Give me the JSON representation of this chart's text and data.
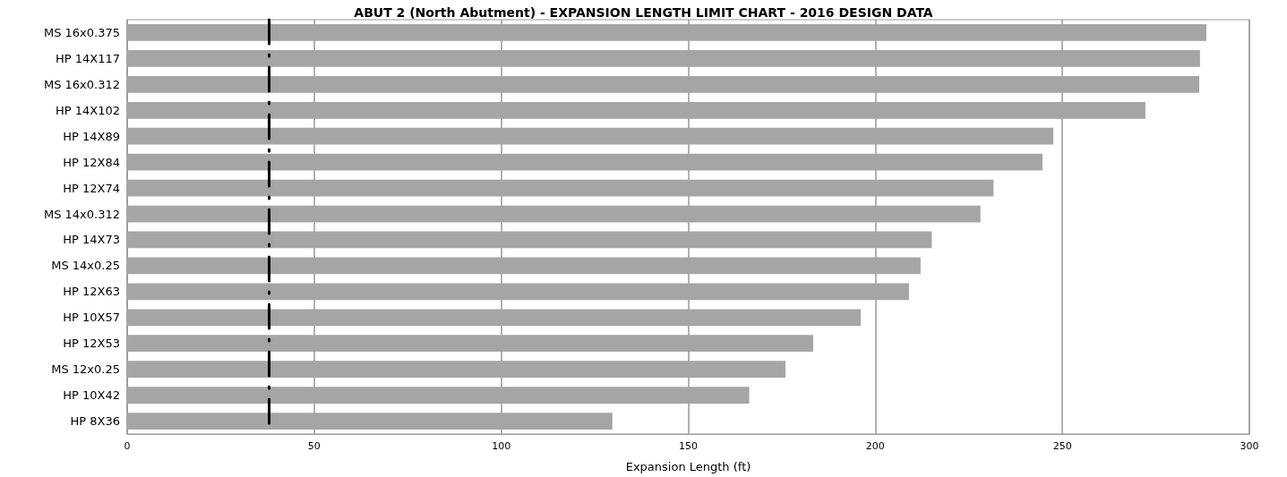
{
  "chart_data": {
    "type": "bar",
    "orientation": "horizontal",
    "title": "ABUT 2 (North Abutment) - EXPANSION LENGTH LIMIT CHART - 2016 DESIGN DATA",
    "xlabel": "Expansion Length (ft)",
    "categories": [
      "MS 16x0.375",
      "HP 14X117",
      "MS 16x0.312",
      "HP 14X102",
      "HP 14X89",
      "HP 12X84",
      "HP 12X74",
      "MS 14x0.312",
      "HP 14X73",
      "MS 14x0.25",
      "HP 12X63",
      "HP 10X57",
      "HP 12X53",
      "MS 12x0.25",
      "HP 10X42",
      "HP 8X36"
    ],
    "values": [
      288.5,
      286.8,
      286.6,
      272.2,
      247.6,
      244.7,
      231.6,
      228.1,
      215.1,
      212.1,
      209.0,
      196.1,
      183.4,
      176.0,
      166.3,
      129.7
    ],
    "color": "#a5a5a5",
    "xlim": [
      0,
      300
    ],
    "xticks": [
      0,
      50,
      100,
      150,
      200,
      250,
      300
    ],
    "grid": "x",
    "ref_lines": [
      {
        "axis": "x",
        "value": 38,
        "color": "#000000",
        "line_style": "dashed"
      }
    ]
  }
}
